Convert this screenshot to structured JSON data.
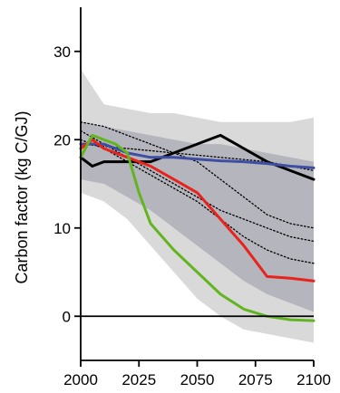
{
  "chart_data": {
    "type": "line",
    "title": "",
    "xlabel": "",
    "ylabel": "Carbon factor (kg C/GJ)",
    "xlim": [
      2000,
      2100
    ],
    "ylim": [
      -5,
      35
    ],
    "x_ticks": [
      "2000",
      "2025",
      "2050",
      "2075",
      "2100"
    ],
    "y_ticks": [
      "0",
      "10",
      "20",
      "30"
    ],
    "grid": false,
    "legend": "none",
    "zero_line": true,
    "bands": [
      {
        "color": "#d9d9d9",
        "x": [
          2000,
          2010,
          2020,
          2030,
          2040,
          2050,
          2060,
          2070,
          2080,
          2090,
          2100
        ],
        "upper": [
          28,
          24,
          23.5,
          23,
          23,
          22.5,
          22,
          22,
          22,
          22,
          22.5
        ],
        "lower": [
          14,
          13,
          11,
          8,
          5,
          2,
          0,
          -1.5,
          -2,
          -2.5,
          -3
        ]
      },
      {
        "color": "#b5b5bd",
        "x": [
          2000,
          2010,
          2020,
          2030,
          2040,
          2050,
          2060,
          2070,
          2080,
          2090,
          2100
        ],
        "upper": [
          22,
          21.5,
          21,
          20.5,
          20,
          19.5,
          19.5,
          19,
          18.5,
          18,
          17.5
        ],
        "lower": [
          15.5,
          15,
          13.5,
          12,
          10,
          8,
          6,
          4,
          2.5,
          1.5,
          0.5
        ]
      }
    ],
    "series": [
      {
        "color": "#000000",
        "style": "dotted",
        "x": [
          2000,
          2010,
          2020,
          2030,
          2040,
          2050,
          2060,
          2070,
          2080,
          2090,
          2100
        ],
        "values": [
          22,
          21.5,
          20.5,
          19.5,
          18.5,
          17.5,
          15.5,
          13.5,
          11.5,
          10.5,
          10
        ]
      },
      {
        "color": "#000000",
        "style": "dotted",
        "x": [
          2000,
          2010,
          2020,
          2030,
          2040,
          2050,
          2060,
          2070,
          2080,
          2090,
          2100
        ],
        "values": [
          21,
          19.5,
          18,
          16.5,
          15,
          13.5,
          12,
          11,
          10,
          9,
          8.5
        ]
      },
      {
        "color": "#000000",
        "style": "dotted",
        "x": [
          2000,
          2010,
          2020,
          2030,
          2040,
          2050,
          2060,
          2070,
          2080,
          2090,
          2100
        ],
        "values": [
          20,
          19,
          17.5,
          16,
          14.5,
          13,
          11,
          9,
          7.5,
          6.5,
          6
        ]
      },
      {
        "color": "#000000",
        "style": "dotted",
        "x": [
          2000,
          2020,
          2040,
          2060,
          2080,
          2100
        ],
        "values": [
          19.5,
          19,
          18.5,
          18,
          17.5,
          16.5
        ]
      },
      {
        "color": "#000000",
        "style": "solid",
        "x": [
          2000,
          2005,
          2010,
          2020,
          2030,
          2040,
          2050,
          2060,
          2070,
          2080,
          2090,
          2100
        ],
        "values": [
          18,
          17,
          17.5,
          17.5,
          17.5,
          18.5,
          19.5,
          20.5,
          19,
          17.5,
          16.5,
          15.5
        ]
      },
      {
        "color": "#3d4ea3",
        "style": "solid",
        "x": [
          2000,
          2010,
          2020,
          2030,
          2040,
          2050,
          2060,
          2070,
          2080,
          2090,
          2100
        ],
        "values": [
          19.5,
          19.5,
          18.5,
          18,
          18,
          17.8,
          17.6,
          17.5,
          17.3,
          17,
          16.8
        ]
      },
      {
        "color": "#e8231c",
        "style": "solid",
        "x": [
          2000,
          2005,
          2010,
          2020,
          2030,
          2040,
          2050,
          2060,
          2070,
          2080,
          2090,
          2100
        ],
        "values": [
          19,
          20,
          19,
          18,
          17,
          15.5,
          14,
          11,
          8,
          4.5,
          4.3,
          4
        ]
      },
      {
        "color": "#62b521",
        "style": "solid",
        "x": [
          2000,
          2005,
          2010,
          2015,
          2020,
          2025,
          2030,
          2040,
          2050,
          2060,
          2070,
          2080,
          2090,
          2100
        ],
        "values": [
          18,
          20.5,
          20,
          19.5,
          18.5,
          14,
          10.5,
          7.5,
          5,
          2.5,
          0.8,
          0,
          -0.4,
          -0.5
        ]
      }
    ]
  }
}
